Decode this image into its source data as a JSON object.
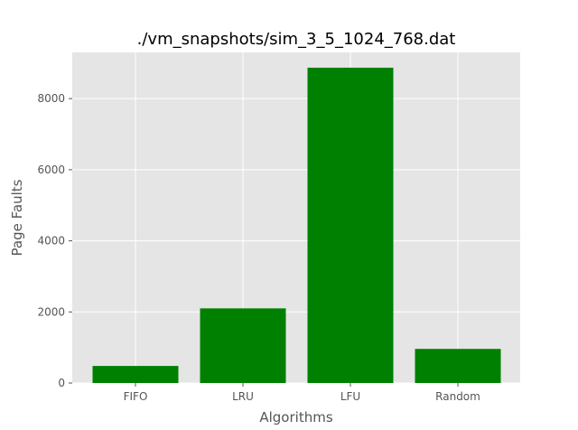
{
  "chart_data": {
    "type": "bar",
    "title": "./vm_snapshots/sim_3_5_1024_768.dat",
    "xlabel": "Algorithms",
    "ylabel": "Page Faults",
    "categories": [
      "FIFO",
      "LRU",
      "LFU",
      "Random"
    ],
    "values": [
      480,
      2100,
      8870,
      960
    ],
    "ylim": [
      0,
      9300
    ],
    "yticks": [
      0,
      2000,
      4000,
      6000,
      8000
    ],
    "grid": true,
    "bar_color": "#008000",
    "plot_background": "#e5e5e5",
    "grid_color": "#ffffff"
  }
}
